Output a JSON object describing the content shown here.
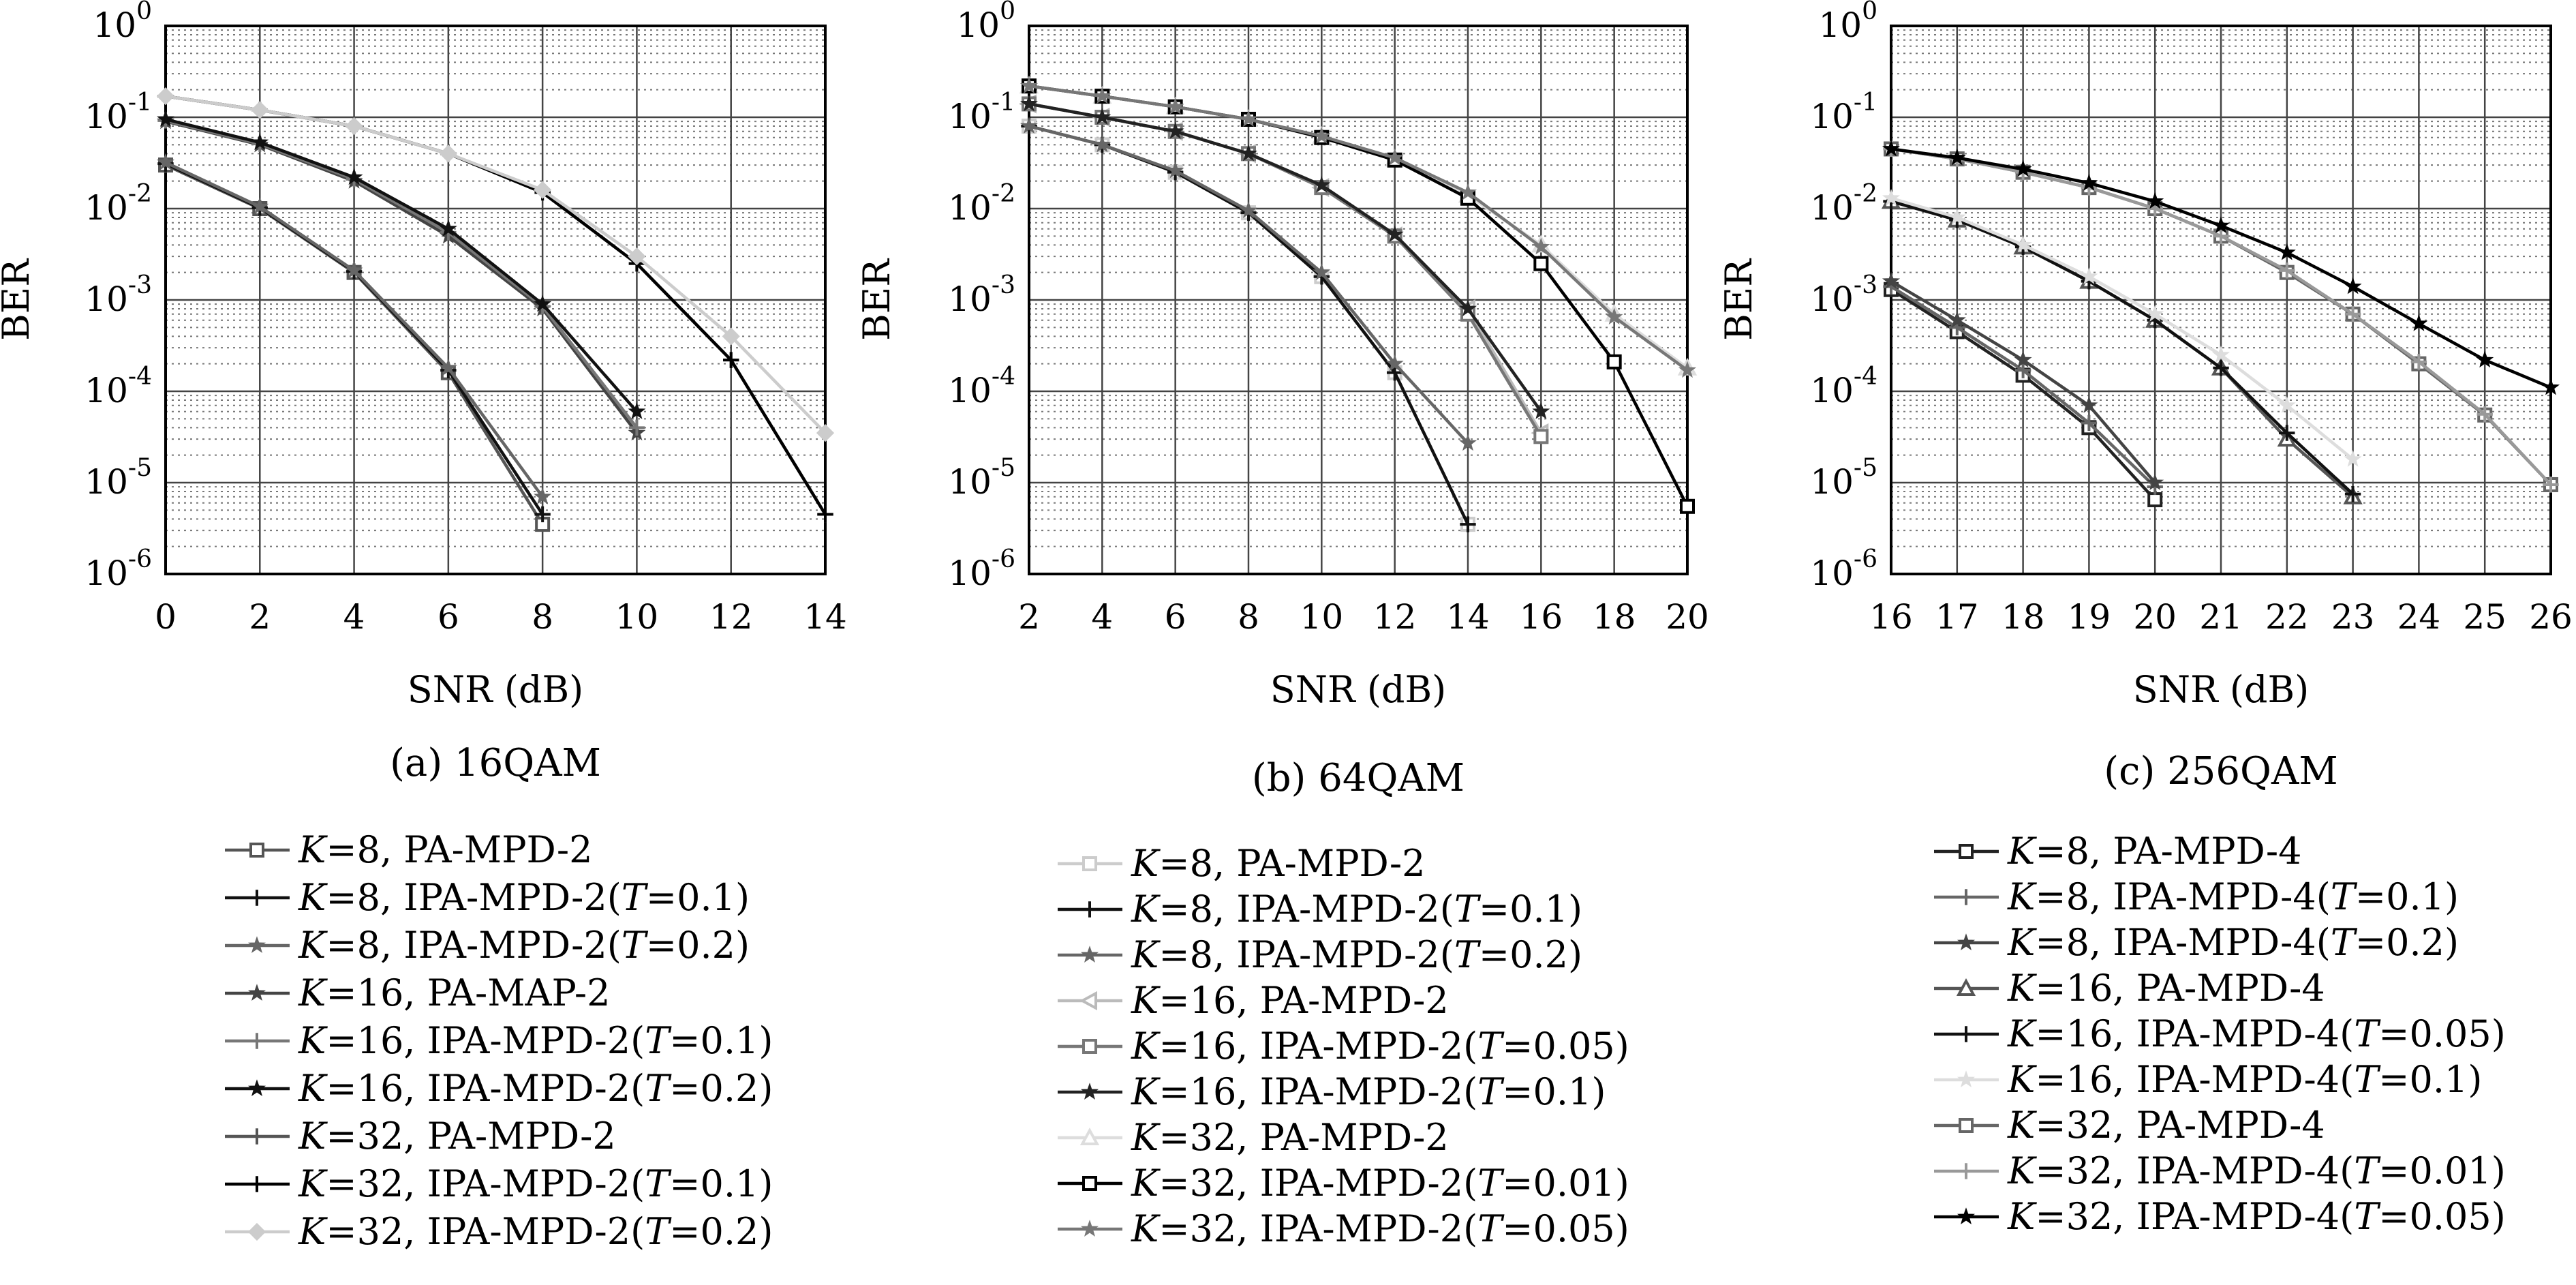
{
  "chart_data": [
    {
      "type": "line",
      "caption": "(a) 16QAM",
      "xlabel": "SNR (dB)",
      "ylabel": "BER",
      "yscale": "log",
      "xlim": [
        0,
        14
      ],
      "ylim": [
        1e-06,
        1
      ],
      "xticks": [
        0,
        2,
        4,
        6,
        8,
        10,
        12,
        14
      ],
      "grid": true,
      "legend_position": "below",
      "series": [
        {
          "name": "K=8, PA-MPD-2",
          "color": "#555555",
          "marker": "square",
          "x": [
            0,
            2,
            4,
            6,
            8
          ],
          "y": [
            0.03,
            0.01,
            0.002,
            0.00016,
            3.5e-06
          ]
        },
        {
          "name": "K=8, IPA-MPD-2(T=0.1)",
          "color": "#111111",
          "marker": "plus",
          "x": [
            0,
            2,
            4,
            6,
            8
          ],
          "y": [
            0.031,
            0.0102,
            0.00205,
            0.00017,
            4.5e-06
          ]
        },
        {
          "name": "K=8, IPA-MPD-2(T=0.2)",
          "color": "#666666",
          "marker": "star",
          "x": [
            0,
            2,
            4,
            6,
            8
          ],
          "y": [
            0.032,
            0.0105,
            0.0021,
            0.00018,
            7e-06
          ]
        },
        {
          "name": "K=16, PA-MAP-2",
          "color": "#444444",
          "marker": "star",
          "x": [
            0,
            2,
            4,
            6,
            8,
            10
          ],
          "y": [
            0.09,
            0.05,
            0.02,
            0.005,
            0.0008,
            3.5e-05
          ]
        },
        {
          "name": "K=16, IPA-MPD-2(T=0.1)",
          "color": "#777777",
          "marker": "plus",
          "x": [
            0,
            2,
            4,
            6,
            8,
            10
          ],
          "y": [
            0.092,
            0.051,
            0.021,
            0.0055,
            0.00085,
            4e-05
          ]
        },
        {
          "name": "K=16, IPA-MPD-2(T=0.2)",
          "color": "#111111",
          "marker": "star",
          "x": [
            0,
            2,
            4,
            6,
            8,
            10
          ],
          "y": [
            0.095,
            0.053,
            0.022,
            0.006,
            0.0009,
            6e-05
          ]
        },
        {
          "name": "K=32, PA-MPD-2",
          "color": "#555555",
          "marker": "plus",
          "x": [
            0,
            2,
            4,
            6,
            8,
            10,
            12,
            14
          ],
          "y": [
            0.17,
            0.12,
            0.08,
            0.04,
            0.015,
            0.0025,
            0.00022,
            4.5e-06
          ]
        },
        {
          "name": "K=32, IPA-MPD-2(T=0.1)",
          "color": "#000000",
          "marker": "plus",
          "x": [
            0,
            2,
            4,
            6,
            8,
            10,
            12,
            14
          ],
          "y": [
            0.17,
            0.12,
            0.08,
            0.04,
            0.015,
            0.0025,
            0.00022,
            4.5e-06
          ]
        },
        {
          "name": "K=32, IPA-MPD-2(T=0.2)",
          "color": "#cccccc",
          "marker": "diamond",
          "x": [
            0,
            2,
            4,
            6,
            8,
            10,
            12,
            14
          ],
          "y": [
            0.17,
            0.12,
            0.08,
            0.04,
            0.016,
            0.003,
            0.0004,
            3.5e-05
          ]
        }
      ]
    },
    {
      "type": "line",
      "caption": "(b) 64QAM",
      "xlabel": "SNR (dB)",
      "ylabel": "BER",
      "yscale": "log",
      "xlim": [
        2,
        20
      ],
      "ylim": [
        1e-06,
        1
      ],
      "xticks": [
        2,
        4,
        6,
        8,
        10,
        12,
        14,
        16,
        18,
        20
      ],
      "grid": true,
      "legend_position": "below",
      "series": [
        {
          "name": "K=8, PA-MPD-2",
          "color": "#cccccc",
          "marker": "square",
          "x": [
            2,
            4,
            6,
            8,
            10,
            12,
            14
          ],
          "y": [
            0.08,
            0.05,
            0.025,
            0.009,
            0.0018,
            0.00016,
            3.5e-06
          ]
        },
        {
          "name": "K=8, IPA-MPD-2(T=0.1)",
          "color": "#111111",
          "marker": "plus",
          "x": [
            2,
            4,
            6,
            8,
            10,
            12,
            14
          ],
          "y": [
            0.08,
            0.05,
            0.025,
            0.009,
            0.0018,
            0.00016,
            3.5e-06
          ]
        },
        {
          "name": "K=8, IPA-MPD-2(T=0.2)",
          "color": "#666666",
          "marker": "star",
          "x": [
            2,
            4,
            6,
            8,
            10,
            12,
            14
          ],
          "y": [
            0.08,
            0.05,
            0.026,
            0.0095,
            0.002,
            0.0002,
            2.7e-05
          ]
        },
        {
          "name": "K=16, PA-MPD-2",
          "color": "#bbbbbb",
          "marker": "triangle-left",
          "x": [
            2,
            4,
            6,
            8,
            10,
            12,
            14,
            16
          ],
          "y": [
            0.14,
            0.1,
            0.07,
            0.04,
            0.017,
            0.005,
            0.0008,
            3.5e-05
          ]
        },
        {
          "name": "K=16, IPA-MPD-2(T=0.05)",
          "color": "#777777",
          "marker": "square",
          "x": [
            2,
            4,
            6,
            8,
            10,
            12,
            14,
            16
          ],
          "y": [
            0.14,
            0.1,
            0.07,
            0.04,
            0.017,
            0.005,
            0.0007,
            3.2e-05
          ]
        },
        {
          "name": "K=16, IPA-MPD-2(T=0.1)",
          "color": "#222222",
          "marker": "star",
          "x": [
            2,
            4,
            6,
            8,
            10,
            12,
            14,
            16
          ],
          "y": [
            0.14,
            0.1,
            0.07,
            0.04,
            0.018,
            0.0052,
            0.0008,
            6e-05
          ]
        },
        {
          "name": "K=32, PA-MPD-2",
          "color": "#dddddd",
          "marker": "triangle",
          "x": [
            2,
            4,
            6,
            8,
            10,
            12,
            14,
            16,
            18,
            20
          ],
          "y": [
            0.22,
            0.17,
            0.13,
            0.095,
            0.062,
            0.035,
            0.014,
            0.004,
            0.0007,
            0.00018
          ]
        },
        {
          "name": "K=32, IPA-MPD-2(T=0.01)",
          "color": "#000000",
          "marker": "square",
          "x": [
            2,
            4,
            6,
            8,
            10,
            12,
            14,
            16,
            18,
            20
          ],
          "y": [
            0.22,
            0.17,
            0.13,
            0.095,
            0.06,
            0.034,
            0.013,
            0.0025,
            0.00021,
            5.5e-06
          ]
        },
        {
          "name": "K=32, IPA-MPD-2(T=0.05)",
          "color": "#777777",
          "marker": "star",
          "x": [
            2,
            4,
            6,
            8,
            10,
            12,
            14,
            16,
            18,
            20
          ],
          "y": [
            0.22,
            0.17,
            0.13,
            0.095,
            0.062,
            0.036,
            0.015,
            0.0038,
            0.00065,
            0.00017
          ]
        }
      ]
    },
    {
      "type": "line",
      "caption": "(c) 256QAM",
      "xlabel": "SNR (dB)",
      "ylabel": "BER",
      "yscale": "log",
      "xlim": [
        16,
        26
      ],
      "ylim": [
        1e-06,
        1
      ],
      "xticks": [
        16,
        17,
        18,
        19,
        20,
        21,
        22,
        23,
        24,
        25,
        26
      ],
      "grid": true,
      "legend_position": "below",
      "series": [
        {
          "name": "K=8, PA-MPD-4",
          "color": "#222222",
          "marker": "square",
          "x": [
            16,
            17,
            18,
            19,
            20
          ],
          "y": [
            0.0013,
            0.00045,
            0.00015,
            4e-05,
            6.5e-06
          ]
        },
        {
          "name": "K=8, IPA-MPD-4(T=0.1)",
          "color": "#666666",
          "marker": "plus",
          "x": [
            16,
            17,
            18,
            19,
            20
          ],
          "y": [
            0.0014,
            0.0005,
            0.00017,
            4.5e-05,
            9e-06
          ]
        },
        {
          "name": "K=8, IPA-MPD-4(T=0.2)",
          "color": "#444444",
          "marker": "star",
          "x": [
            16,
            17,
            18,
            19,
            20
          ],
          "y": [
            0.0016,
            0.0006,
            0.00022,
            7e-05,
            1e-05
          ]
        },
        {
          "name": "K=16, PA-MPD-4",
          "color": "#555555",
          "marker": "triangle",
          "x": [
            16,
            17,
            18,
            19,
            20,
            21,
            22,
            23
          ],
          "y": [
            0.012,
            0.0075,
            0.0038,
            0.0016,
            0.0006,
            0.00018,
            3e-05,
            7e-06
          ]
        },
        {
          "name": "K=16, IPA-MPD-4(T=0.05)",
          "color": "#111111",
          "marker": "plus",
          "x": [
            16,
            17,
            18,
            19,
            20,
            21,
            22,
            23
          ],
          "y": [
            0.012,
            0.0075,
            0.0038,
            0.0016,
            0.0006,
            0.00018,
            3.5e-05,
            7.5e-06
          ]
        },
        {
          "name": "K=16, IPA-MPD-4(T=0.1)",
          "color": "#dddddd",
          "marker": "star",
          "x": [
            16,
            17,
            18,
            19,
            20,
            21,
            22,
            23
          ],
          "y": [
            0.013,
            0.008,
            0.004,
            0.0018,
            0.0007,
            0.00025,
            7e-05,
            1.8e-05
          ]
        },
        {
          "name": "K=32, PA-MPD-4",
          "color": "#666666",
          "marker": "square",
          "x": [
            16,
            17,
            18,
            19,
            20,
            21,
            22,
            23,
            24,
            25,
            26
          ],
          "y": [
            0.045,
            0.035,
            0.025,
            0.017,
            0.01,
            0.005,
            0.002,
            0.0007,
            0.0002,
            5.5e-05,
            9.5e-06
          ]
        },
        {
          "name": "K=32, IPA-MPD-4(T=0.01)",
          "color": "#999999",
          "marker": "plus",
          "x": [
            16,
            17,
            18,
            19,
            20,
            21,
            22,
            23,
            24,
            25,
            26
          ],
          "y": [
            0.045,
            0.035,
            0.025,
            0.017,
            0.01,
            0.005,
            0.0021,
            0.0007,
            0.00021,
            5.6e-05,
            9.5e-06
          ]
        },
        {
          "name": "K=32, IPA-MPD-4(T=0.05)",
          "color": "#000000",
          "marker": "star",
          "x": [
            16,
            17,
            18,
            19,
            20,
            21,
            22,
            23,
            24,
            25,
            26
          ],
          "y": [
            0.045,
            0.036,
            0.027,
            0.019,
            0.012,
            0.0065,
            0.0033,
            0.0014,
            0.00055,
            0.00022,
            0.00011
          ]
        }
      ]
    }
  ]
}
